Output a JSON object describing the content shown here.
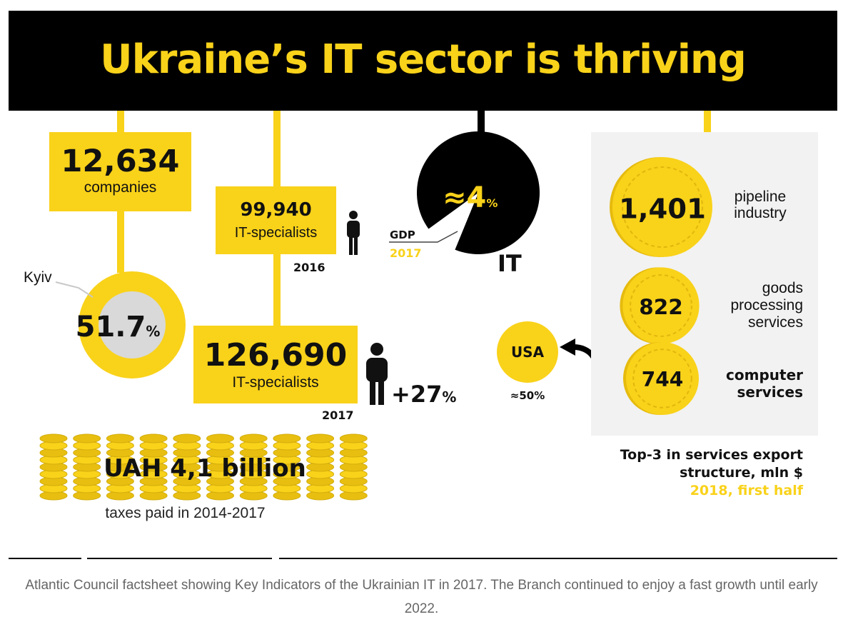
{
  "title": "Ukraine’s IT sector is thriving",
  "companies": {
    "value": "12,634",
    "label": "companies"
  },
  "kyiv": {
    "label": "Kyiv",
    "value": "51.7",
    "unit": "%",
    "share": 0.517
  },
  "specialists_2016": {
    "value": "99,940",
    "label": "IT-specialists",
    "year": "2016"
  },
  "specialists_2017": {
    "value": "126,690",
    "label": "IT-specialists",
    "year": "2017",
    "growth": "+27",
    "growth_unit": "%"
  },
  "gdp": {
    "prefix": "≈",
    "value": "4",
    "unit": "%",
    "label": "GDP",
    "year": "2017",
    "sector_label": "IT",
    "share": 0.04
  },
  "taxes": {
    "value": "UAH 4,1 billion",
    "label": "taxes paid in 2014-2017"
  },
  "usa": {
    "label": "USA",
    "share": "≈50%"
  },
  "chart_data": {
    "type": "bar",
    "title": "Top-3 in services export structure, mln $",
    "subtitle": "2018, first half",
    "categories": [
      "pipeline industry",
      "goods processing services",
      "computer services"
    ],
    "values": [
      1401,
      822,
      744
    ],
    "value_labels": [
      "1,401",
      "822",
      "744"
    ],
    "category_lines": [
      [
        "pipeline",
        "industry"
      ],
      [
        "goods",
        "processing",
        "services"
      ],
      [
        "computer",
        "services"
      ]
    ]
  },
  "export_footer": {
    "line1": "Top-3 in services export",
    "line2": "structure, mln $",
    "line3": "2018, first half"
  },
  "caption": "Atlantic Council factsheet showing Key Indicators of the Ukrainian IT in 2017. The Branch continued to enjoy a fast growth until early 2022.",
  "colors": {
    "accent": "#f9d21a",
    "dark": "#000000",
    "panel": "#f2f2f2"
  }
}
